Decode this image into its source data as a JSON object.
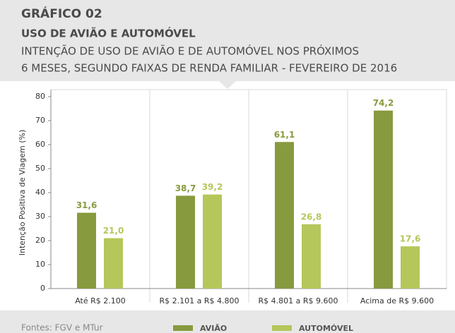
{
  "chart_data": {
    "type": "bar",
    "title": "GRÁFICO 02",
    "subtitle": "USO DE AVIÃO E AUTOMÓVEL",
    "description": [
      "INTENÇÃO DE USO DE AVIÃO E DE AUTOMÓVEL NOS PRÓXIMOS",
      "6 MESES, SEGUNDO FAIXAS DE RENDA FAMILIAR - FEVEREIRO DE 2016"
    ],
    "y_label": "Intenção Positiva de Viagem (%)",
    "source": "Fontes: FGV e MTur",
    "categories": [
      "Até R$ 2.100",
      "R$ 2.101 a R$ 4.800",
      "R$ 4.801 a R$ 9.600",
      "Acima de R$ 9.600"
    ],
    "series": [
      {
        "name": "AVIÃO",
        "color": "#879a3e",
        "values": [
          31.6,
          38.7,
          61.1,
          74.2
        ],
        "value_labels": [
          "31,6",
          "38,7",
          "61,1",
          "74,2"
        ]
      },
      {
        "name": "AUTOMÓVEL",
        "color": "#b5c75a",
        "values": [
          21.0,
          39.2,
          26.8,
          17.6
        ],
        "value_labels": [
          "21,0",
          "39,2",
          "26,8",
          "17,6"
        ]
      }
    ],
    "ylim": [
      0,
      80
    ],
    "yticks": [
      0,
      10,
      20,
      30,
      40,
      50,
      60,
      70,
      80
    ]
  }
}
